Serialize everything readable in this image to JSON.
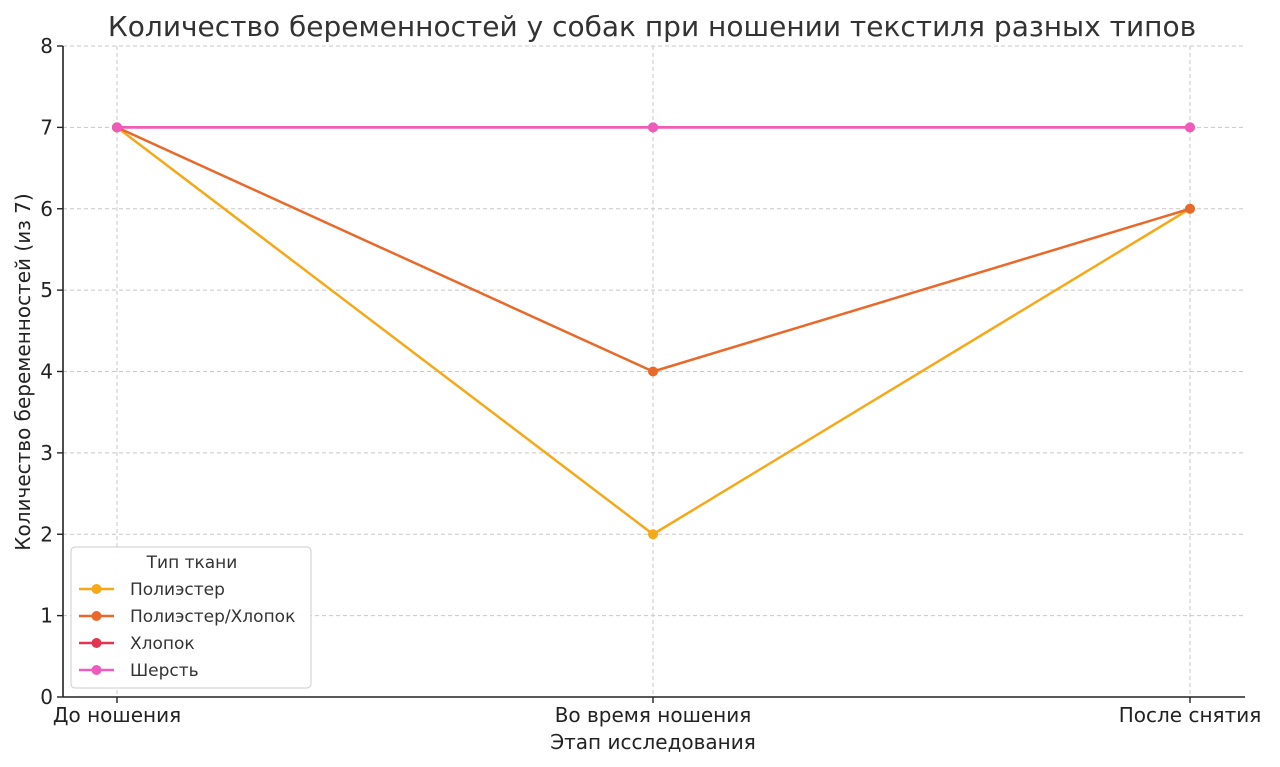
{
  "chart_data": {
    "type": "line",
    "title": "Количество беременностей у собак при ношении текстиля разных типов",
    "xlabel": "Этап исследования",
    "ylabel": "Количество беременностей (из 7)",
    "categories": [
      "До ношения",
      "Во время ношения",
      "После снятия"
    ],
    "ylim": [
      0,
      8
    ],
    "yticks": [
      0,
      1,
      2,
      3,
      4,
      5,
      6,
      7,
      8
    ],
    "grid": true,
    "legend": {
      "title": "Тип ткани",
      "placement": "lower-left"
    },
    "series": [
      {
        "name": "Полиэстер",
        "color": "#f5a918",
        "values": [
          7,
          2,
          6
        ]
      },
      {
        "name": "Полиэстер/Хлопок",
        "color": "#e8692a",
        "values": [
          7,
          4,
          6
        ]
      },
      {
        "name": "Хлопок",
        "color": "#e0344f",
        "values": [
          7,
          7,
          7
        ]
      },
      {
        "name": "Шерсть",
        "color": "#ef5bbd",
        "values": [
          7,
          7,
          7
        ]
      }
    ]
  }
}
